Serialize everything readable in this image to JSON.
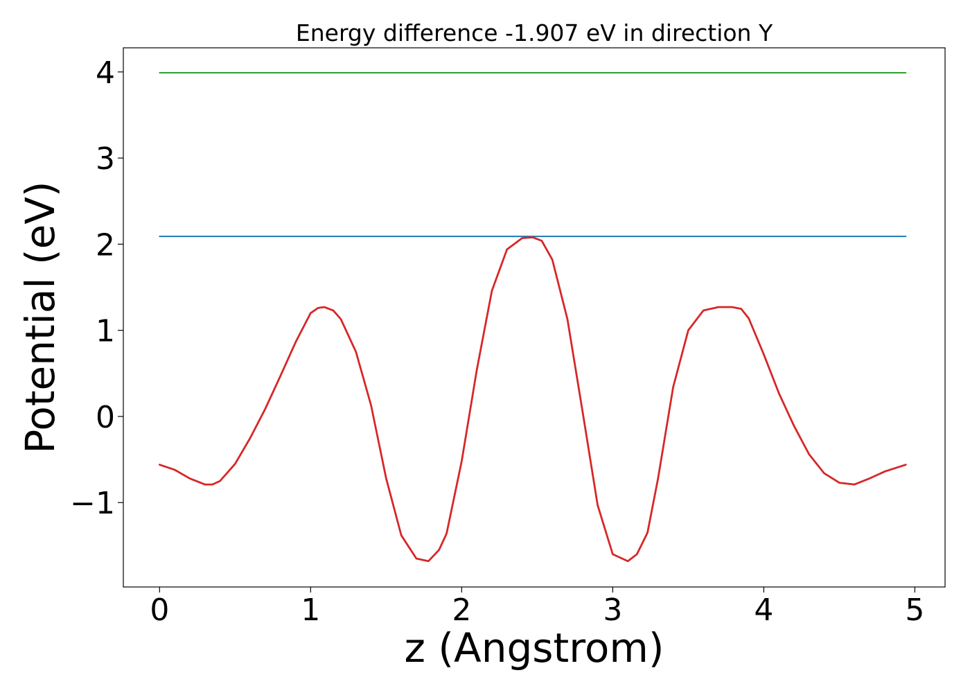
{
  "chart_data": {
    "type": "line",
    "title": "Energy difference -1.907 eV in direction Y",
    "xlabel": "z (Angstrom)",
    "ylabel": "Potential (eV)",
    "xlim": [
      -0.24,
      5.2
    ],
    "ylim": [
      -1.98,
      4.28
    ],
    "xticks": [
      0,
      1,
      2,
      3,
      4,
      5
    ],
    "xtick_labels": [
      "0",
      "1",
      "2",
      "3",
      "4",
      "5"
    ],
    "yticks": [
      -1,
      0,
      1,
      2,
      3,
      4
    ],
    "ytick_labels": [
      "−1",
      "0",
      "1",
      "2",
      "3",
      "4"
    ],
    "grid": false,
    "series": [
      {
        "color": "#2ca02c",
        "x": [
          0,
          4.94
        ],
        "y": [
          3.99,
          3.99
        ]
      },
      {
        "color": "#1f77b4",
        "x": [
          0,
          4.94
        ],
        "y": [
          2.09,
          2.09
        ]
      },
      {
        "color": "#d62728",
        "x": [
          0,
          0.1,
          0.2,
          0.3,
          0.35,
          0.4,
          0.5,
          0.6,
          0.7,
          0.8,
          0.9,
          1.0,
          1.05,
          1.09,
          1.15,
          1.2,
          1.3,
          1.4,
          1.5,
          1.6,
          1.7,
          1.78,
          1.85,
          1.9,
          2.0,
          2.1,
          2.2,
          2.3,
          2.4,
          2.47,
          2.53,
          2.6,
          2.7,
          2.8,
          2.9,
          3.0,
          3.1,
          3.16,
          3.23,
          3.3,
          3.4,
          3.5,
          3.6,
          3.7,
          3.79,
          3.85,
          3.9,
          4.0,
          4.1,
          4.2,
          4.3,
          4.4,
          4.5,
          4.6,
          4.7,
          4.8,
          4.94
        ],
        "y": [
          -0.56,
          -0.62,
          -0.72,
          -0.79,
          -0.79,
          -0.75,
          -0.55,
          -0.25,
          0.09,
          0.47,
          0.86,
          1.2,
          1.26,
          1.27,
          1.23,
          1.13,
          0.75,
          0.13,
          -0.72,
          -1.38,
          -1.65,
          -1.68,
          -1.55,
          -1.36,
          -0.52,
          0.54,
          1.46,
          1.94,
          2.07,
          2.08,
          2.04,
          1.82,
          1.13,
          0.06,
          -1.03,
          -1.6,
          -1.68,
          -1.6,
          -1.35,
          -0.72,
          0.34,
          1.0,
          1.23,
          1.27,
          1.27,
          1.25,
          1.14,
          0.72,
          0.27,
          -0.11,
          -0.44,
          -0.66,
          -0.77,
          -0.79,
          -0.72,
          -0.64,
          -0.56
        ]
      }
    ]
  }
}
